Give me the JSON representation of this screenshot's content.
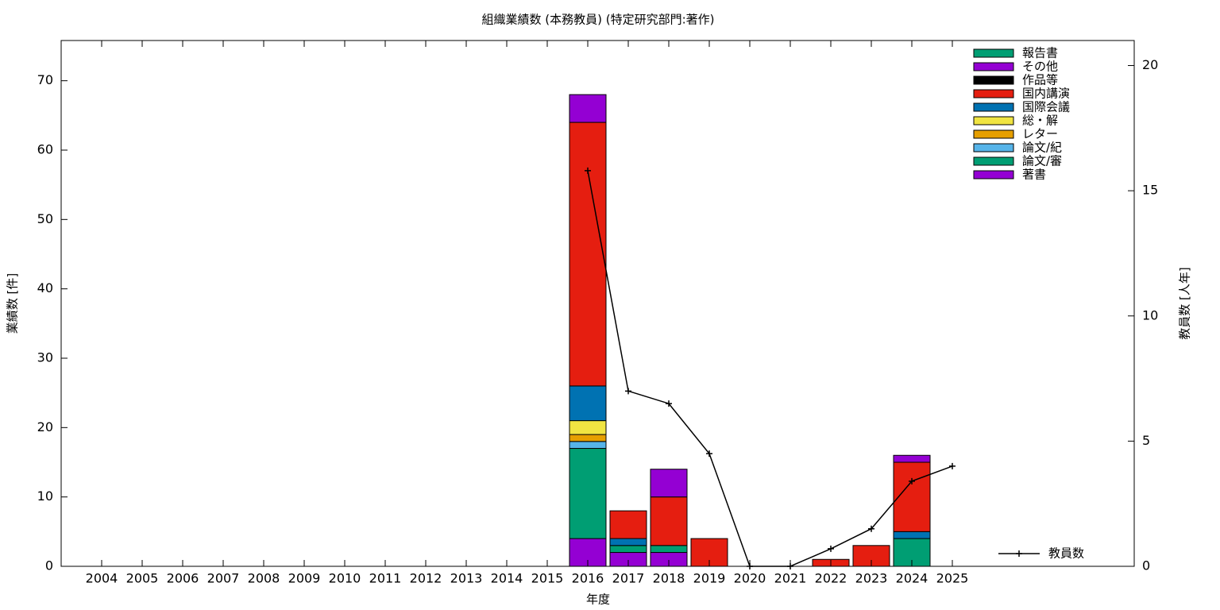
{
  "chart_data": {
    "type": "bar",
    "title": "組織業績数 (本務教員) (特定研究部門:著作)",
    "x_label": "年度",
    "y_label": "業績数 [件]",
    "y2_label": "教員数 [人年]",
    "categories": [
      "2004",
      "2005",
      "2006",
      "2007",
      "2008",
      "2009",
      "2010",
      "2011",
      "2012",
      "2013",
      "2014",
      "2015",
      "2016",
      "2017",
      "2018",
      "2019",
      "2020",
      "2021",
      "2022",
      "2023",
      "2024",
      "2025"
    ],
    "stacked": true,
    "series": [
      {
        "name": "著書",
        "color": "#9400d3",
        "values": [
          0,
          0,
          0,
          0,
          0,
          0,
          0,
          0,
          0,
          0,
          0,
          0,
          4,
          2,
          2,
          0,
          0,
          0,
          0,
          0,
          0,
          0
        ]
      },
      {
        "name": "論文/審",
        "color": "#009e73",
        "values": [
          0,
          0,
          0,
          0,
          0,
          0,
          0,
          0,
          0,
          0,
          0,
          0,
          13,
          1,
          1,
          0,
          0,
          0,
          0,
          0,
          4,
          0
        ]
      },
      {
        "name": "論文/紀",
        "color": "#56b4e9",
        "values": [
          0,
          0,
          0,
          0,
          0,
          0,
          0,
          0,
          0,
          0,
          0,
          0,
          1,
          0,
          0,
          0,
          0,
          0,
          0,
          0,
          0,
          0
        ]
      },
      {
        "name": "レター",
        "color": "#e69f00",
        "values": [
          0,
          0,
          0,
          0,
          0,
          0,
          0,
          0,
          0,
          0,
          0,
          0,
          1,
          0,
          0,
          0,
          0,
          0,
          0,
          0,
          0,
          0
        ]
      },
      {
        "name": "総・解",
        "color": "#f0e442",
        "values": [
          0,
          0,
          0,
          0,
          0,
          0,
          0,
          0,
          0,
          0,
          0,
          0,
          2,
          0,
          0,
          0,
          0,
          0,
          0,
          0,
          0,
          0
        ]
      },
      {
        "name": "国際会議",
        "color": "#0072b2",
        "values": [
          0,
          0,
          0,
          0,
          0,
          0,
          0,
          0,
          0,
          0,
          0,
          0,
          5,
          1,
          0,
          0,
          0,
          0,
          0,
          0,
          1,
          0
        ]
      },
      {
        "name": "国内講演",
        "color": "#e51e10",
        "values": [
          0,
          0,
          0,
          0,
          0,
          0,
          0,
          0,
          0,
          0,
          0,
          0,
          38,
          4,
          7,
          4,
          0,
          0,
          1,
          3,
          10,
          0
        ]
      },
      {
        "name": "作品等",
        "color": "#000000",
        "values": [
          0,
          0,
          0,
          0,
          0,
          0,
          0,
          0,
          0,
          0,
          0,
          0,
          0,
          0,
          0,
          0,
          0,
          0,
          0,
          0,
          0,
          0
        ]
      },
      {
        "name": "その他",
        "color": "#9400d3",
        "values": [
          0,
          0,
          0,
          0,
          0,
          0,
          0,
          0,
          0,
          0,
          0,
          0,
          4,
          0,
          4,
          0,
          0,
          0,
          0,
          0,
          1,
          0
        ]
      },
      {
        "name": "報告書",
        "color": "#009e73",
        "values": [
          0,
          0,
          0,
          0,
          0,
          0,
          0,
          0,
          0,
          0,
          0,
          0,
          0,
          0,
          0,
          0,
          0,
          0,
          0,
          0,
          0,
          0
        ]
      },
      {
        "name": "教員数",
        "color": "#000000",
        "type": "line",
        "axis": "y2",
        "values": [
          null,
          null,
          null,
          null,
          null,
          null,
          null,
          null,
          null,
          null,
          null,
          null,
          15.8,
          7.0,
          6.5,
          4.5,
          0,
          0,
          0.7,
          1.5,
          3.4,
          4.0
        ]
      }
    ],
    "ylim": [
      0,
      75.8
    ],
    "yticks": [
      0,
      10,
      20,
      30,
      40,
      50,
      60,
      70
    ],
    "y2lim": [
      0,
      21
    ],
    "y2ticks": [
      0,
      5,
      10,
      15,
      20
    ],
    "legend": "upper right"
  }
}
